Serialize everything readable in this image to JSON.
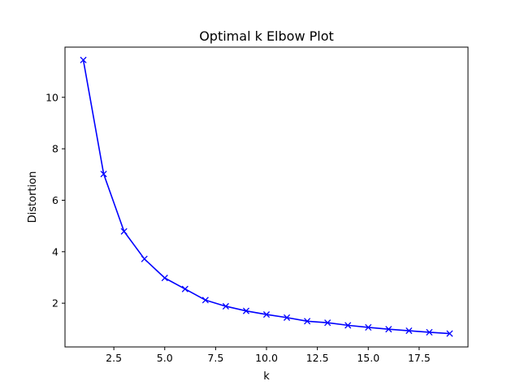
{
  "chart_data": {
    "type": "line",
    "title": "Optimal k Elbow Plot",
    "xlabel": "k",
    "ylabel": "Distortion",
    "xlim": [
      0.1,
      19.9
    ],
    "ylim": [
      0.3,
      11.95
    ],
    "x_ticks": [
      2.5,
      5.0,
      7.5,
      10.0,
      12.5,
      15.0,
      17.5
    ],
    "x_tick_labels": [
      "2.5",
      "5.0",
      "7.5",
      "10.0",
      "12.5",
      "15.0",
      "17.5"
    ],
    "y_ticks": [
      2,
      4,
      6,
      8,
      10
    ],
    "y_tick_labels": [
      "2",
      "4",
      "6",
      "8",
      "10"
    ],
    "grid": false,
    "series": [
      {
        "color": "#0000ff",
        "marker": "x",
        "x": [
          1,
          2,
          3,
          4,
          5,
          6,
          7,
          8,
          9,
          10,
          11,
          12,
          13,
          14,
          15,
          16,
          17,
          18,
          19
        ],
        "values": [
          11.45,
          7.02,
          4.79,
          3.72,
          2.98,
          2.55,
          2.12,
          1.88,
          1.7,
          1.56,
          1.44,
          1.3,
          1.24,
          1.14,
          1.06,
          0.99,
          0.93,
          0.87,
          0.82
        ]
      }
    ]
  }
}
